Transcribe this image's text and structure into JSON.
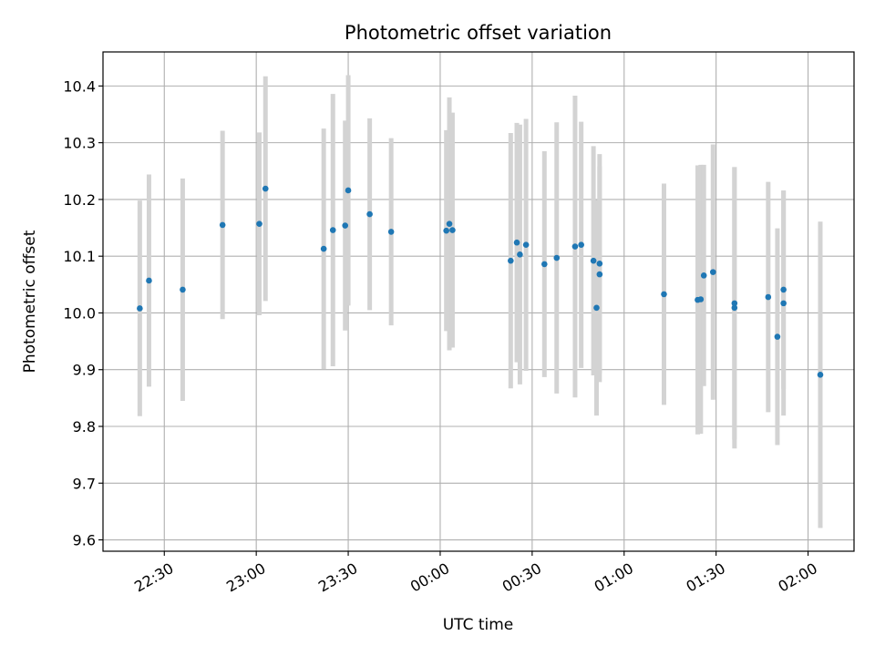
{
  "chart_data": {
    "type": "scatter",
    "title": "Photometric offset variation",
    "xlabel": "UTC time",
    "ylabel": "Photometric offset",
    "x_axis_type": "time",
    "xlim": [
      "22:10",
      "02:15"
    ],
    "ylim": [
      9.58,
      10.46
    ],
    "x_ticks": [
      "22:30",
      "23:00",
      "23:30",
      "00:00",
      "00:30",
      "01:00",
      "01:30",
      "02:00"
    ],
    "y_ticks": [
      "9.6",
      "9.7",
      "9.8",
      "9.9",
      "10.0",
      "10.1",
      "10.2",
      "10.3",
      "10.4"
    ],
    "grid": true,
    "colors": {
      "point": "#1f77b4",
      "errorbar": "#d3d3d3",
      "grid": "#b0b0b0",
      "axes": "#000000"
    },
    "points": [
      {
        "t": "22:22",
        "y": 10.008,
        "err": 0.19
      },
      {
        "t": "22:25",
        "y": 10.057,
        "err": 0.187
      },
      {
        "t": "22:36",
        "y": 10.041,
        "err": 0.196
      },
      {
        "t": "22:49",
        "y": 10.155,
        "err": 0.166
      },
      {
        "t": "23:01",
        "y": 10.157,
        "err": 0.161
      },
      {
        "t": "23:03",
        "y": 10.219,
        "err": 0.198
      },
      {
        "t": "23:22",
        "y": 10.113,
        "err": 0.212
      },
      {
        "t": "23:25",
        "y": 10.146,
        "err": 0.24
      },
      {
        "t": "23:29",
        "y": 10.154,
        "err": 0.185
      },
      {
        "t": "23:30",
        "y": 10.216,
        "err": 0.203
      },
      {
        "t": "23:37",
        "y": 10.174,
        "err": 0.169
      },
      {
        "t": "23:44",
        "y": 10.143,
        "err": 0.165
      },
      {
        "t": "00:02",
        "y": 10.145,
        "err": 0.177
      },
      {
        "t": "00:03",
        "y": 10.157,
        "err": 0.223
      },
      {
        "t": "00:04",
        "y": 10.146,
        "err": 0.207
      },
      {
        "t": "00:23",
        "y": 10.092,
        "err": 0.225
      },
      {
        "t": "00:25",
        "y": 10.124,
        "err": 0.211
      },
      {
        "t": "00:26",
        "y": 10.103,
        "err": 0.229
      },
      {
        "t": "00:28",
        "y": 10.12,
        "err": 0.222
      },
      {
        "t": "00:34",
        "y": 10.086,
        "err": 0.199
      },
      {
        "t": "00:38",
        "y": 10.097,
        "err": 0.239
      },
      {
        "t": "00:44",
        "y": 10.117,
        "err": 0.266
      },
      {
        "t": "00:46",
        "y": 10.12,
        "err": 0.217
      },
      {
        "t": "00:50",
        "y": 10.092,
        "err": 0.202
      },
      {
        "t": "00:51",
        "y": 10.009,
        "err": 0.19
      },
      {
        "t": "00:52",
        "y": 10.068,
        "err": 0.19
      },
      {
        "t": "00:52",
        "y": 10.087,
        "err": 0.193
      },
      {
        "t": "01:13",
        "y": 10.033,
        "err": 0.195
      },
      {
        "t": "01:24",
        "y": 10.023,
        "err": 0.237
      },
      {
        "t": "01:25",
        "y": 10.024,
        "err": 0.237
      },
      {
        "t": "01:26",
        "y": 10.066,
        "err": 0.195
      },
      {
        "t": "01:29",
        "y": 10.072,
        "err": 0.225
      },
      {
        "t": "01:36",
        "y": 10.009,
        "err": 0.248
      },
      {
        "t": "01:36",
        "y": 10.017,
        "err": 0.24
      },
      {
        "t": "01:47",
        "y": 10.028,
        "err": 0.203
      },
      {
        "t": "01:50",
        "y": 9.958,
        "err": 0.191
      },
      {
        "t": "01:52",
        "y": 10.041,
        "err": 0.175
      },
      {
        "t": "01:52",
        "y": 10.017,
        "err": 0.198
      },
      {
        "t": "02:04",
        "y": 9.891,
        "err": 0.27
      }
    ]
  }
}
